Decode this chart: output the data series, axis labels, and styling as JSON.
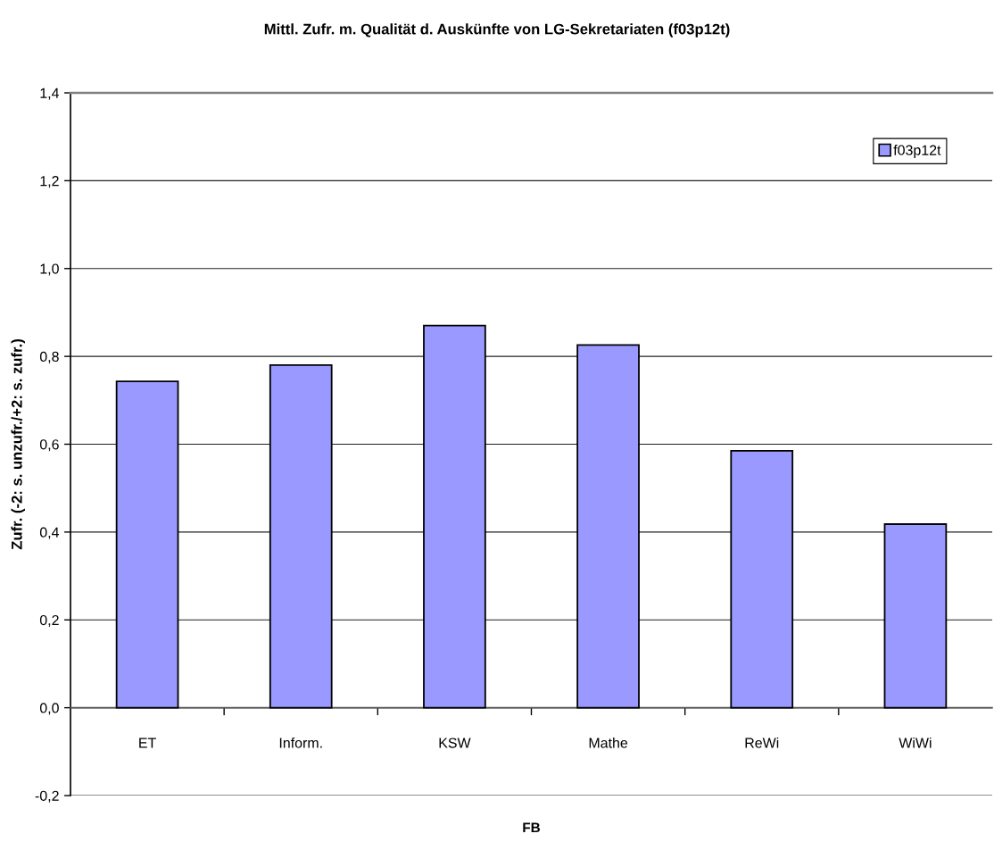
{
  "chart_data": {
    "type": "bar",
    "title": "Mittl. Zufr. m. Qualität d. Auskünfte von LG-Sekretariaten (f03p12t)",
    "xlabel": "FB",
    "ylabel": "Zufr. (-2: s. unzufr./+2: s. zufr.)",
    "categories": [
      "ET",
      "Inform.",
      "KSW",
      "Mathe",
      "ReWi",
      "WiWi"
    ],
    "series": [
      {
        "name": "f03p12t",
        "color": "#9999ff",
        "values": [
          0.743,
          0.78,
          0.87,
          0.826,
          0.585,
          0.418
        ]
      }
    ],
    "ylim": [
      -0.2,
      1.4
    ],
    "yticks": [
      {
        "value": -0.2,
        "label": "-0,2"
      },
      {
        "value": 0.0,
        "label": "0,0"
      },
      {
        "value": 0.2,
        "label": "0,2"
      },
      {
        "value": 0.4,
        "label": "0,4"
      },
      {
        "value": 0.6,
        "label": "0,6"
      },
      {
        "value": 0.8,
        "label": "0,8"
      },
      {
        "value": 1.0,
        "label": "1,0"
      },
      {
        "value": 1.2,
        "label": "1,2"
      },
      {
        "value": 1.4,
        "label": "1,4"
      }
    ],
    "grid": "y",
    "legend": "top right"
  }
}
